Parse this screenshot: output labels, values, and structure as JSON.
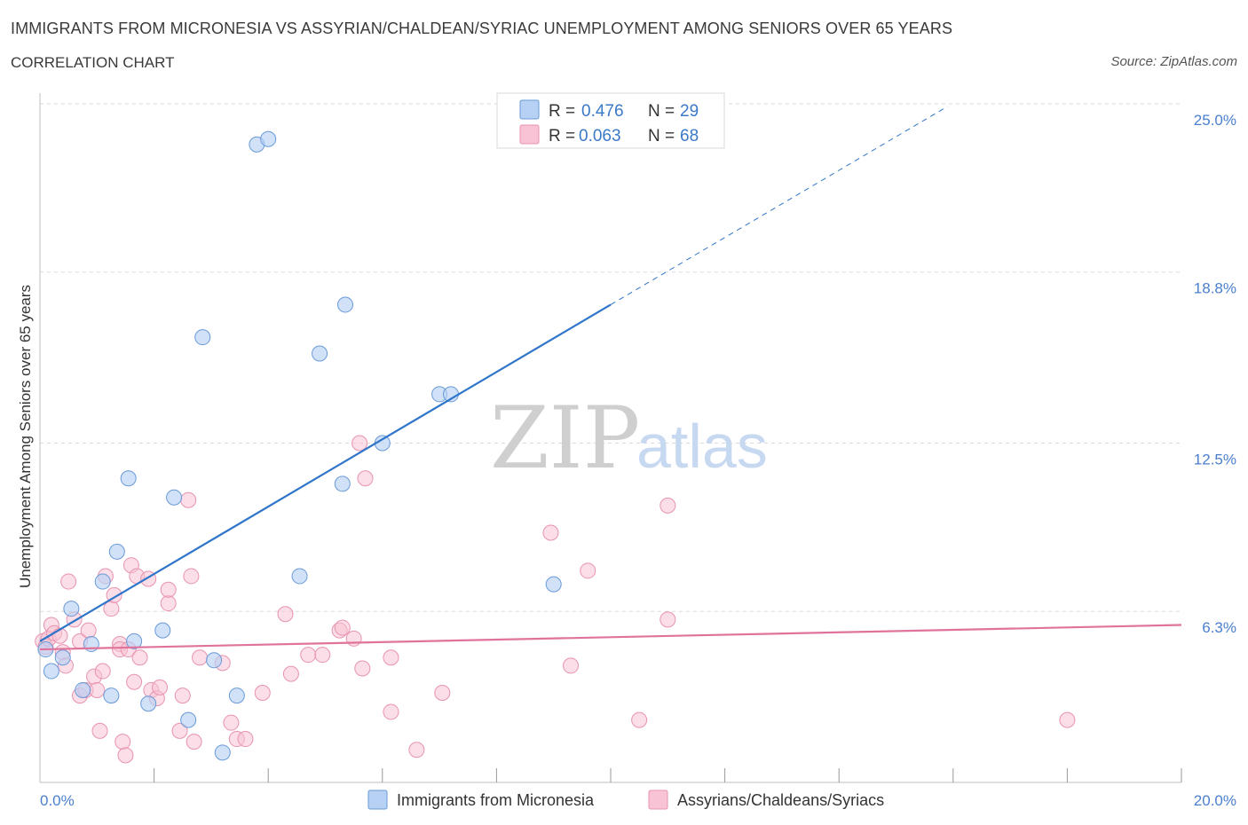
{
  "header": {
    "title": "IMMIGRANTS FROM MICRONESIA VS ASSYRIAN/CHALDEAN/SYRIAC UNEMPLOYMENT AMONG SENIORS OVER 65 YEARS",
    "subtitle": "CORRELATION CHART",
    "source": "Source: ZipAtlas.com"
  },
  "watermark": {
    "zip": "ZIP",
    "atlas": "atlas"
  },
  "legend": {
    "series1": {
      "r_label": "R =",
      "r_value": "0.476",
      "n_label": "N =",
      "n_value": "29"
    },
    "series2": {
      "r_label": "R =",
      "r_value": "0.063",
      "n_label": "N =",
      "n_value": "68"
    }
  },
  "bottom_legend": {
    "series1": "Immigrants from Micronesia",
    "series2": "Assyrians/Chaldeans/Syriacs"
  },
  "colors": {
    "blue_fill": "#b7d1f4",
    "blue_stroke": "#6a9ad8",
    "blue_line": "#2f75c9",
    "pink_fill": "#f8c3d4",
    "pink_stroke": "#e893b0",
    "pink_line": "#e0739b",
    "grid": "#d9d9d9"
  },
  "chart_data": {
    "type": "scatter",
    "title": "IMMIGRANTS FROM MICRONESIA VS ASSYRIAN/CHALDEAN/SYRIAC UNEMPLOYMENT AMONG SENIORS OVER 65 YEARS",
    "xlabel": "",
    "ylabel": "Unemployment Among Seniors over 65 years",
    "xlim": [
      0,
      20
    ],
    "ylim": [
      0,
      25
    ],
    "x_tick_labels": [
      {
        "value": 0,
        "label": "0.0%"
      },
      {
        "value": 20,
        "label": "20.0%"
      }
    ],
    "y_tick_labels": [
      {
        "value": 6.3,
        "label": "6.3%"
      },
      {
        "value": 12.5,
        "label": "12.5%"
      },
      {
        "value": 18.8,
        "label": "18.8%"
      },
      {
        "value": 25.0,
        "label": "25.0%"
      }
    ],
    "series": [
      {
        "name": "Immigrants from Micronesia",
        "color": "blue",
        "points": [
          [
            0.1,
            4.9
          ],
          [
            0.2,
            4.1
          ],
          [
            0.4,
            4.6
          ],
          [
            0.55,
            6.4
          ],
          [
            0.75,
            3.4
          ],
          [
            0.9,
            5.1
          ],
          [
            1.1,
            7.4
          ],
          [
            1.25,
            3.2
          ],
          [
            1.35,
            8.5
          ],
          [
            1.55,
            11.2
          ],
          [
            1.65,
            5.2
          ],
          [
            1.9,
            2.9
          ],
          [
            2.15,
            5.6
          ],
          [
            2.35,
            10.5
          ],
          [
            2.6,
            2.3
          ],
          [
            2.85,
            16.4
          ],
          [
            3.05,
            4.5
          ],
          [
            3.2,
            1.1
          ],
          [
            3.45,
            3.2
          ],
          [
            3.8,
            23.5
          ],
          [
            4.0,
            23.7
          ],
          [
            4.55,
            7.6
          ],
          [
            4.9,
            15.8
          ],
          [
            5.3,
            11.0
          ],
          [
            5.35,
            17.6
          ],
          [
            6.0,
            12.5
          ],
          [
            7.0,
            14.3
          ],
          [
            7.2,
            14.3
          ],
          [
            9.0,
            7.3
          ]
        ],
        "trend": {
          "x_start": 0.0,
          "y_start": 5.2,
          "x_end": 10.0,
          "y_end": 17.6,
          "dashed_to_x": 15.9,
          "dashed_to_y": 24.9
        }
      },
      {
        "name": "Assyrians/Chaldeans/Syriacs",
        "color": "pink",
        "points": [
          [
            0.05,
            5.2
          ],
          [
            0.1,
            5.0
          ],
          [
            0.15,
            5.3
          ],
          [
            0.2,
            5.8
          ],
          [
            0.25,
            5.5
          ],
          [
            0.35,
            5.4
          ],
          [
            0.4,
            4.8
          ],
          [
            0.45,
            4.3
          ],
          [
            0.5,
            7.4
          ],
          [
            0.6,
            6.0
          ],
          [
            0.7,
            5.2
          ],
          [
            0.7,
            3.2
          ],
          [
            0.8,
            3.4
          ],
          [
            0.85,
            5.6
          ],
          [
            0.95,
            3.9
          ],
          [
            1.0,
            3.4
          ],
          [
            1.05,
            1.9
          ],
          [
            1.1,
            4.1
          ],
          [
            1.15,
            7.6
          ],
          [
            1.25,
            6.4
          ],
          [
            1.3,
            6.9
          ],
          [
            1.4,
            5.1
          ],
          [
            1.4,
            4.9
          ],
          [
            1.45,
            1.5
          ],
          [
            1.5,
            1.0
          ],
          [
            1.55,
            4.9
          ],
          [
            1.6,
            8.0
          ],
          [
            1.65,
            3.7
          ],
          [
            1.7,
            7.6
          ],
          [
            1.75,
            4.6
          ],
          [
            1.9,
            7.5
          ],
          [
            1.95,
            3.4
          ],
          [
            2.05,
            3.1
          ],
          [
            2.1,
            3.5
          ],
          [
            2.25,
            6.6
          ],
          [
            2.25,
            7.1
          ],
          [
            2.45,
            1.9
          ],
          [
            2.5,
            3.2
          ],
          [
            2.6,
            10.4
          ],
          [
            2.65,
            7.6
          ],
          [
            2.7,
            1.5
          ],
          [
            2.8,
            4.6
          ],
          [
            3.2,
            4.4
          ],
          [
            3.35,
            2.2
          ],
          [
            3.45,
            1.6
          ],
          [
            3.6,
            1.6
          ],
          [
            3.9,
            3.3
          ],
          [
            4.3,
            6.2
          ],
          [
            4.4,
            4.0
          ],
          [
            4.7,
            4.7
          ],
          [
            4.95,
            4.7
          ],
          [
            5.25,
            5.6
          ],
          [
            5.3,
            5.7
          ],
          [
            5.5,
            5.3
          ],
          [
            5.6,
            12.5
          ],
          [
            5.65,
            4.2
          ],
          [
            5.7,
            11.2
          ],
          [
            6.15,
            4.6
          ],
          [
            6.15,
            2.6
          ],
          [
            6.6,
            1.2
          ],
          [
            7.05,
            3.3
          ],
          [
            8.95,
            9.2
          ],
          [
            9.3,
            4.3
          ],
          [
            9.6,
            7.8
          ],
          [
            10.5,
            2.3
          ],
          [
            11.0,
            10.2
          ],
          [
            11.0,
            6.0
          ],
          [
            18.0,
            2.3
          ]
        ],
        "trend": {
          "x_start": 0.0,
          "y_start": 4.9,
          "x_end": 20.0,
          "y_end": 5.8
        }
      }
    ]
  }
}
